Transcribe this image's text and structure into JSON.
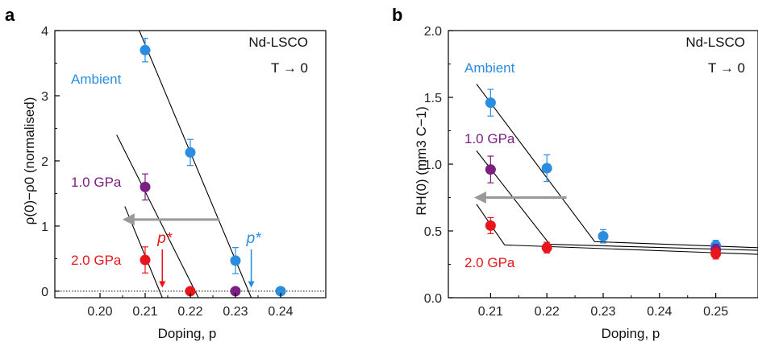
{
  "chart_data": [
    {
      "panel": "a",
      "type": "scatter",
      "xlabel": "Doping, p",
      "ylabel": "ρ(0)−ρ0 (normalised)",
      "xlim": [
        0.19,
        0.25
      ],
      "ylim": [
        -0.1,
        4
      ],
      "xticks": [
        0.2,
        0.21,
        0.22,
        0.23,
        0.24
      ],
      "xtick_labels": [
        "0.20",
        "0.21",
        "0.22",
        "0.23",
        "0.24"
      ],
      "yticks": [
        0,
        1,
        2,
        3,
        4
      ],
      "ytick_labels": [
        "0",
        "1",
        "2",
        "3",
        "4"
      ],
      "annotation_lines": [
        "Nd-LSCO",
        "T → 0"
      ],
      "zero_line": true,
      "series": [
        {
          "name": "Ambient",
          "color": "#2a8de0",
          "points": [
            {
              "x": 0.21,
              "y": 3.7,
              "err": 0.18
            },
            {
              "x": 0.22,
              "y": 2.13,
              "err": 0.2
            },
            {
              "x": 0.23,
              "y": 0.47,
              "err": 0.2
            },
            {
              "x": 0.24,
              "y": 0.0,
              "err": 0
            }
          ],
          "fit": [
            [
              0.2087,
              4.0
            ],
            [
              0.2335,
              -0.1
            ]
          ]
        },
        {
          "name": "1.0 GPa",
          "color": "#7b1f82",
          "points": [
            {
              "x": 0.21,
              "y": 1.6,
              "err": 0.2
            },
            {
              "x": 0.23,
              "y": 0.0,
              "err": 0
            }
          ],
          "fit": [
            [
              0.2037,
              2.4
            ],
            [
              0.2218,
              -0.1
            ]
          ]
        },
        {
          "name": "2.0 GPa",
          "color": "#e8161b",
          "points": [
            {
              "x": 0.21,
              "y": 0.48,
              "err": 0.2
            },
            {
              "x": 0.22,
              "y": 0.0,
              "err": 0
            }
          ],
          "fit": [
            [
              0.2055,
              1.3
            ],
            [
              0.2138,
              -0.1
            ]
          ]
        }
      ],
      "markers": [
        {
          "label": "p*",
          "x": 0.2138,
          "color": "#e8161b"
        },
        {
          "label": "p*",
          "x": 0.2335,
          "color": "#2a8de0"
        }
      ],
      "shift_arrow": {
        "from": [
          0.2265,
          1.1
        ],
        "to": [
          0.2055,
          1.1
        ],
        "color": "#999999"
      }
    },
    {
      "panel": "b",
      "type": "scatter",
      "xlabel": "Doping, p",
      "ylabel": "RH(0) (mm3 C−1)",
      "xlim": [
        0.2025,
        0.2575
      ],
      "ylim": [
        0,
        2.0
      ],
      "xticks": [
        0.21,
        0.22,
        0.23,
        0.24,
        0.25
      ],
      "xtick_labels": [
        "0.21",
        "0.22",
        "0.23",
        "0.24",
        "0.25"
      ],
      "yticks": [
        0,
        0.5,
        1.0,
        1.5,
        2.0
      ],
      "ytick_labels": [
        "0.0",
        "0.5",
        "1.0",
        "1.5",
        "2.0"
      ],
      "annotation_lines": [
        "Nd-LSCO",
        "T → 0"
      ],
      "series": [
        {
          "name": "Ambient",
          "color": "#2a8de0",
          "points": [
            {
              "x": 0.21,
              "y": 1.46,
              "err": 0.1
            },
            {
              "x": 0.22,
              "y": 0.97,
              "err": 0.1
            },
            {
              "x": 0.23,
              "y": 0.46,
              "err": 0.05
            },
            {
              "x": 0.25,
              "y": 0.39,
              "err": 0.04
            }
          ],
          "fit": [
            [
              0.2075,
              1.6
            ],
            [
              0.2285,
              0.42
            ],
            [
              0.2575,
              0.375
            ]
          ]
        },
        {
          "name": "1.0 GPa",
          "color": "#7b1f82",
          "points": [
            {
              "x": 0.21,
              "y": 0.96,
              "err": 0.1
            },
            {
              "x": 0.25,
              "y": 0.36,
              "err": 0.04
            }
          ],
          "fit": [
            [
              0.2075,
              1.1
            ],
            [
              0.2205,
              0.4
            ],
            [
              0.2575,
              0.355
            ]
          ]
        },
        {
          "name": "2.0 GPa",
          "color": "#e8161b",
          "points": [
            {
              "x": 0.21,
              "y": 0.54,
              "err": 0.06
            },
            {
              "x": 0.22,
              "y": 0.375,
              "err": 0.04
            },
            {
              "x": 0.25,
              "y": 0.33,
              "err": 0.04
            }
          ],
          "fit": [
            [
              0.2075,
              0.7
            ],
            [
              0.2125,
              0.395
            ],
            [
              0.2575,
              0.325
            ]
          ]
        }
      ],
      "shift_arrow": {
        "from": [
          0.2235,
          0.75
        ],
        "to": [
          0.2075,
          0.75
        ],
        "color": "#999999"
      }
    }
  ]
}
